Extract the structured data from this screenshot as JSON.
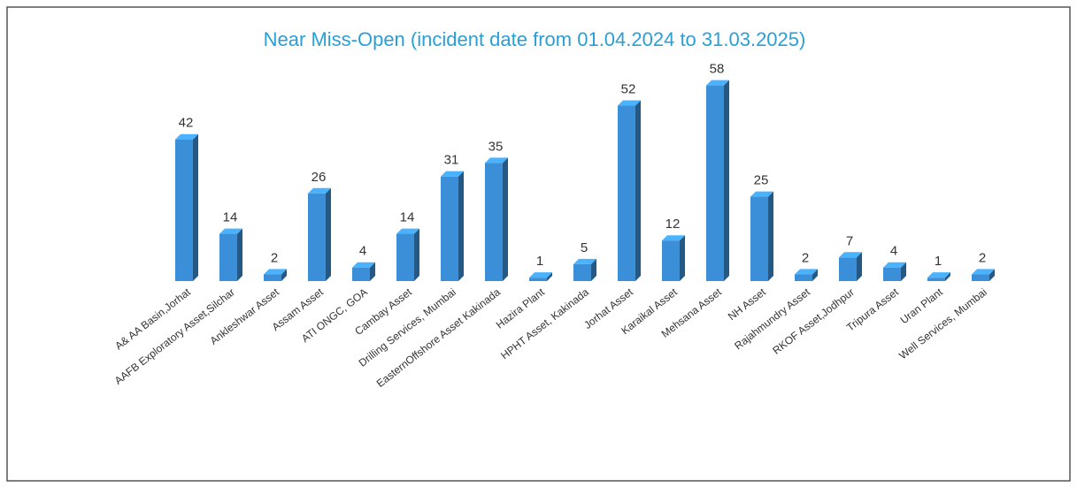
{
  "chart_data": {
    "type": "bar",
    "title": "Near Miss-Open (incident date from 01.04.2024 to 31.03.2025)",
    "categories": [
      "A& AA Basin,Jorhat",
      "AAFB Exploratory Asset,Silchar",
      "Ankleshwar Asset",
      "Assam Asset",
      "ATI ONGC, GOA",
      "Cambay Asset",
      "Drilling Services, Mumbai",
      "EasternOffshore Asset Kakinada",
      "Hazira Plant",
      "HPHT Asset, Kakinada",
      "Jorhat Asset",
      "Karaikal Asset",
      "Mehsana Asset",
      "NH Asset",
      "Rajahmundry Asset",
      "RKOF Asset,Jodhpur",
      "Tripura Asset",
      "Uran Plant",
      "Well Services, Mumbai"
    ],
    "values": [
      42,
      14,
      2,
      26,
      4,
      14,
      31,
      35,
      1,
      5,
      52,
      12,
      58,
      25,
      2,
      7,
      4,
      1,
      2
    ],
    "color": "#3a8fd8",
    "ylim": [
      0,
      60
    ]
  }
}
